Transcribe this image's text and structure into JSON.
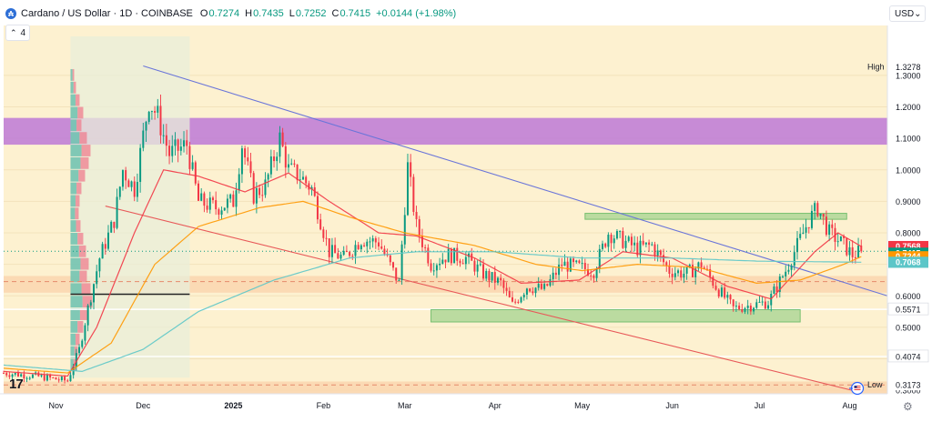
{
  "header": {
    "symbol": "Cardano / US Dollar · 1D · COINBASE",
    "logo_glyph": "₳",
    "open_label": "O",
    "open": "0.7274",
    "high_label": "H",
    "high": "0.7435",
    "low_label": "L",
    "low": "0.7252",
    "close_label": "C",
    "close": "0.7415",
    "change": "+0.0144 (+1.98%)",
    "up_color": "#089981"
  },
  "indicators_toggle": {
    "chevron": "⌃",
    "count": "4"
  },
  "currency": {
    "label": "USD",
    "chevron": "⌄"
  },
  "settings_icon": "⚙",
  "brand_logo": "17",
  "events_flag_icon": "flag-icon",
  "chart_data": {
    "type": "candlestick",
    "title": "Cardano / US Dollar · 1D · COINBASE",
    "y_axis": {
      "min": 0.2917,
      "max": 1.4297,
      "ticks": [
        "1.3000",
        "1.2000",
        "1.1000",
        "1.0000",
        "0.9000",
        "0.8000",
        "0.7000",
        "0.6000",
        "0.5000",
        "0.4000",
        "0.3000"
      ]
    },
    "x_axis": {
      "start": "2024-10-14",
      "end": "2025-08-14",
      "labels": [
        {
          "label": "Nov",
          "date": "2024-11-01"
        },
        {
          "label": "Dec",
          "date": "2024-12-01"
        },
        {
          "label": "2025",
          "date": "2025-01-01"
        },
        {
          "label": "Feb",
          "date": "2025-02-01"
        },
        {
          "label": "Mar",
          "date": "2025-03-01"
        },
        {
          "label": "Apr",
          "date": "2025-04-01"
        },
        {
          "label": "May",
          "date": "2025-05-01"
        },
        {
          "label": "Jun",
          "date": "2025-06-01"
        },
        {
          "label": "Jul",
          "date": "2025-07-01"
        },
        {
          "label": "Aug",
          "date": "2025-08-01"
        }
      ]
    },
    "price_labels": [
      {
        "label": "High",
        "value": "1.3278"
      },
      {
        "label": "Low",
        "value": "0.3173"
      }
    ],
    "level_labels": [
      "0.5571",
      "0.4074"
    ],
    "markers": [
      {
        "name": "ema-1",
        "value": "0.7568",
        "color": "#f23645"
      },
      {
        "name": "last-price",
        "value": "0.7415",
        "sub": "15:35:39",
        "color": "#089981"
      },
      {
        "name": "ema-2",
        "value": "0.7244",
        "color": "#ff9800"
      },
      {
        "name": "ma-3",
        "value": "0.7068",
        "color": "#5cc6c8"
      }
    ],
    "zones": [
      {
        "name": "resistance-zone",
        "from": 1.08,
        "to": 1.165,
        "color": "#c17fd6"
      },
      {
        "name": "support-band",
        "from": 0.61,
        "to": 0.663,
        "color": "#fbd7b0"
      },
      {
        "name": "low-band",
        "from": 0.27,
        "to": 0.328,
        "color": "#fbd7b0"
      }
    ],
    "boxes": [
      {
        "name": "upper-green-box",
        "x1": "2025-05-02",
        "x2": "2025-07-31",
        "y1": 0.843,
        "y2": 0.862
      },
      {
        "name": "lower-green-box",
        "x1": "2025-03-10",
        "x2": "2025-07-15",
        "y1": 0.517,
        "y2": 0.556
      }
    ],
    "trendlines": [
      {
        "name": "blue-trendline",
        "x1": "2024-12-01",
        "y1": 1.33,
        "x2": "2025-08-14",
        "y2": 0.6,
        "color": "#6a75d9"
      },
      {
        "name": "red-trendline",
        "x1": "2024-11-18",
        "y1": 0.885,
        "x2": "2025-08-04",
        "y2": 0.295,
        "color": "#e85959"
      }
    ],
    "hlines": [
      {
        "name": "dashed-support-0.645",
        "value": 0.645,
        "style": "dashed"
      },
      {
        "name": "dashed-low-0.317",
        "value": 0.317,
        "style": "dashed"
      },
      {
        "name": "white-line-0.5571",
        "value": 0.5571,
        "style": "solid"
      },
      {
        "name": "white-line-0.4074",
        "value": 0.4074,
        "style": "solid"
      },
      {
        "name": "last-price-dotted",
        "value": 0.7415,
        "style": "dotted"
      },
      {
        "name": "black-poc-line",
        "value": 0.605,
        "style": "solid",
        "from": "2024-11-06",
        "to": "2024-12-17"
      }
    ],
    "volume_profile": {
      "from": "2024-11-06",
      "to": "2024-12-17"
    },
    "series": [
      {
        "name": "price",
        "type": "candlestick",
        "points": [
          [
            "2024-10-14",
            0.355
          ],
          [
            "2024-10-25",
            0.345
          ],
          [
            "2024-11-05",
            0.33
          ],
          [
            "2024-11-09",
            0.43
          ],
          [
            "2024-11-12",
            0.56
          ],
          [
            "2024-11-16",
            0.72
          ],
          [
            "2024-11-21",
            0.84
          ],
          [
            "2024-11-24",
            1.0
          ],
          [
            "2024-11-28",
            0.94
          ],
          [
            "2024-12-03",
            1.22
          ],
          [
            "2024-12-06",
            1.17
          ],
          [
            "2024-12-10",
            1.05
          ],
          [
            "2024-12-16",
            1.08
          ],
          [
            "2024-12-20",
            0.9
          ],
          [
            "2024-12-26",
            0.88
          ],
          [
            "2025-01-01",
            0.9
          ],
          [
            "2025-01-04",
            1.08
          ],
          [
            "2025-01-08",
            0.92
          ],
          [
            "2025-01-12",
            0.95
          ],
          [
            "2025-01-17",
            1.1
          ],
          [
            "2025-01-20",
            1.0
          ],
          [
            "2025-01-24",
            0.98
          ],
          [
            "2025-01-28",
            0.94
          ],
          [
            "2025-02-03",
            0.74
          ],
          [
            "2025-02-08",
            0.72
          ],
          [
            "2025-02-14",
            0.78
          ],
          [
            "2025-02-20",
            0.77
          ],
          [
            "2025-02-27",
            0.64
          ],
          [
            "2025-03-02",
            1.01
          ],
          [
            "2025-03-05",
            0.82
          ],
          [
            "2025-03-10",
            0.7
          ],
          [
            "2025-03-16",
            0.73
          ],
          [
            "2025-03-22",
            0.72
          ],
          [
            "2025-03-28",
            0.67
          ],
          [
            "2025-04-03",
            0.64
          ],
          [
            "2025-04-07",
            0.57
          ],
          [
            "2025-04-12",
            0.63
          ],
          [
            "2025-04-18",
            0.62
          ],
          [
            "2025-04-24",
            0.7
          ],
          [
            "2025-04-30",
            0.69
          ],
          [
            "2025-05-05",
            0.68
          ],
          [
            "2025-05-10",
            0.8
          ],
          [
            "2025-05-14",
            0.78
          ],
          [
            "2025-05-20",
            0.75
          ],
          [
            "2025-05-25",
            0.76
          ],
          [
            "2025-05-31",
            0.68
          ],
          [
            "2025-06-06",
            0.67
          ],
          [
            "2025-06-11",
            0.7
          ],
          [
            "2025-06-16",
            0.63
          ],
          [
            "2025-06-22",
            0.56
          ],
          [
            "2025-06-28",
            0.57
          ],
          [
            "2025-07-04",
            0.58
          ],
          [
            "2025-07-10",
            0.68
          ],
          [
            "2025-07-14",
            0.76
          ],
          [
            "2025-07-18",
            0.84
          ],
          [
            "2025-07-21",
            0.88
          ],
          [
            "2025-07-25",
            0.8
          ],
          [
            "2025-07-29",
            0.77
          ],
          [
            "2025-08-02",
            0.73
          ],
          [
            "2025-08-05",
            0.7415
          ]
        ]
      },
      {
        "name": "EMA fast",
        "color": "#f23645",
        "points": [
          [
            "2024-10-14",
            0.36
          ],
          [
            "2024-11-05",
            0.345
          ],
          [
            "2024-11-15",
            0.5
          ],
          [
            "2024-11-28",
            0.8
          ],
          [
            "2024-12-08",
            1.0
          ],
          [
            "2024-12-20",
            0.98
          ],
          [
            "2025-01-05",
            0.93
          ],
          [
            "2025-01-20",
            0.99
          ],
          [
            "2025-02-03",
            0.9
          ],
          [
            "2025-02-20",
            0.8
          ],
          [
            "2025-03-05",
            0.79
          ],
          [
            "2025-03-25",
            0.72
          ],
          [
            "2025-04-10",
            0.64
          ],
          [
            "2025-04-30",
            0.65
          ],
          [
            "2025-05-15",
            0.74
          ],
          [
            "2025-06-01",
            0.72
          ],
          [
            "2025-06-20",
            0.63
          ],
          [
            "2025-07-05",
            0.59
          ],
          [
            "2025-07-20",
            0.74
          ],
          [
            "2025-07-28",
            0.8
          ],
          [
            "2025-08-05",
            0.7568
          ]
        ]
      },
      {
        "name": "EMA slow",
        "color": "#ff9800",
        "points": [
          [
            "2024-10-14",
            0.37
          ],
          [
            "2024-11-05",
            0.355
          ],
          [
            "2024-11-20",
            0.45
          ],
          [
            "2024-12-05",
            0.7
          ],
          [
            "2024-12-20",
            0.82
          ],
          [
            "2025-01-10",
            0.88
          ],
          [
            "2025-01-25",
            0.9
          ],
          [
            "2025-02-10",
            0.85
          ],
          [
            "2025-03-01",
            0.8
          ],
          [
            "2025-03-25",
            0.76
          ],
          [
            "2025-04-15",
            0.7
          ],
          [
            "2025-05-01",
            0.68
          ],
          [
            "2025-05-20",
            0.7
          ],
          [
            "2025-06-10",
            0.69
          ],
          [
            "2025-06-30",
            0.64
          ],
          [
            "2025-07-15",
            0.65
          ],
          [
            "2025-07-30",
            0.7
          ],
          [
            "2025-08-05",
            0.7244
          ]
        ]
      },
      {
        "name": "MA long",
        "color": "#5cc6c8",
        "points": [
          [
            "2024-10-14",
            0.38
          ],
          [
            "2024-11-10",
            0.36
          ],
          [
            "2024-12-01",
            0.43
          ],
          [
            "2024-12-20",
            0.55
          ],
          [
            "2025-01-15",
            0.65
          ],
          [
            "2025-02-10",
            0.72
          ],
          [
            "2025-03-05",
            0.74
          ],
          [
            "2025-04-01",
            0.74
          ],
          [
            "2025-05-01",
            0.72
          ],
          [
            "2025-06-01",
            0.72
          ],
          [
            "2025-07-01",
            0.71
          ],
          [
            "2025-08-05",
            0.7068
          ]
        ]
      }
    ]
  }
}
